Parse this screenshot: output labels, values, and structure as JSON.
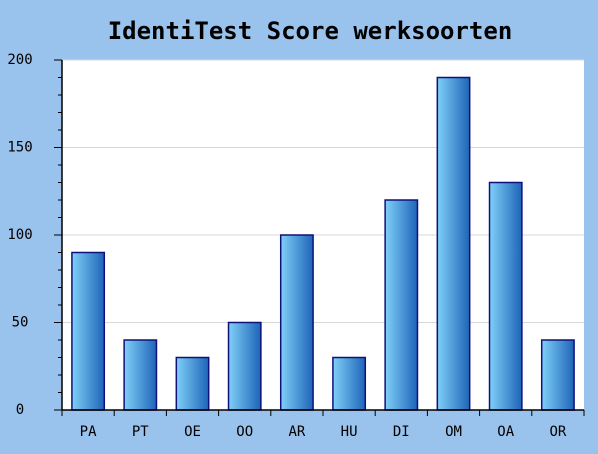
{
  "chart_data": {
    "type": "bar",
    "title": "IdentiTest Score werksoorten",
    "categories": [
      "PA",
      "PT",
      "OE",
      "OO",
      "AR",
      "HU",
      "DI",
      "OM",
      "OA",
      "OR"
    ],
    "values": [
      90,
      40,
      30,
      50,
      100,
      30,
      120,
      190,
      130,
      40
    ],
    "color": "#1e64b8",
    "ylim": [
      0,
      200
    ],
    "yticks": [
      0,
      50,
      100,
      150,
      200
    ],
    "grid": true
  }
}
